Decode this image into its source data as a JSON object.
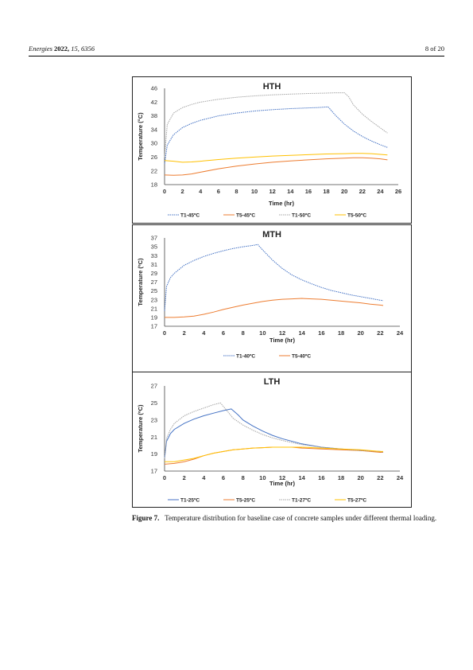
{
  "header": {
    "journal": "Energies",
    "year": "2022,",
    "volume_issue": "15, 6356",
    "page": "8 of 20"
  },
  "caption": {
    "label": "Figure 7.",
    "text": "Temperature distribution for baseline case of concrete samples under different thermal loading."
  },
  "chart_data": [
    {
      "type": "line",
      "title": "HTH",
      "xlabel": "Time (hr)",
      "ylabel": "Temperature (°C)",
      "xlim": [
        0,
        26
      ],
      "ylim": [
        18,
        46
      ],
      "xticks": [
        0,
        2,
        4,
        6,
        8,
        10,
        12,
        14,
        16,
        18,
        20,
        22,
        24,
        26
      ],
      "yticks": [
        18,
        22,
        26,
        30,
        34,
        38,
        42,
        46
      ],
      "grid": false,
      "legend": "bottom",
      "series": [
        {
          "name": "T1-45ºC",
          "color": "#4472c4",
          "dash": true,
          "x": [
            0,
            0.3,
            1,
            2,
            3,
            4,
            6,
            8,
            10,
            12,
            14,
            16,
            17,
            18.2,
            19,
            20,
            21,
            22,
            23,
            24,
            24.8
          ],
          "y": [
            24,
            29.5,
            32.5,
            34.6,
            35.8,
            36.7,
            38.0,
            38.8,
            39.4,
            39.8,
            40.1,
            40.3,
            40.4,
            40.6,
            38.2,
            35.6,
            33.6,
            32.0,
            30.7,
            29.6,
            28.8
          ]
        },
        {
          "name": "T5-45ºC",
          "color": "#ed7d31",
          "dash": false,
          "x": [
            0,
            1,
            2,
            3,
            4,
            6,
            8,
            10,
            12,
            14,
            16,
            18,
            20,
            21,
            22,
            23,
            24,
            24.8
          ],
          "y": [
            20.8,
            20.7,
            20.8,
            21.1,
            21.6,
            22.6,
            23.4,
            24.0,
            24.5,
            24.9,
            25.2,
            25.5,
            25.7,
            25.8,
            25.8,
            25.7,
            25.5,
            25.2
          ]
        },
        {
          "name": "T1-50ºC",
          "color": "#a5a5a5",
          "dash": true,
          "x": [
            0,
            0.3,
            1,
            2,
            3,
            4,
            6,
            8,
            10,
            12,
            14,
            16,
            18,
            19,
            20,
            20.5,
            21,
            22,
            23,
            24,
            24.8
          ],
          "y": [
            26,
            35.5,
            38.8,
            40.4,
            41.3,
            42.0,
            42.8,
            43.4,
            43.8,
            44.1,
            44.3,
            44.5,
            44.6,
            44.7,
            44.7,
            43.5,
            41.2,
            38.5,
            36.4,
            34.5,
            33.0
          ]
        },
        {
          "name": "T5-50ºC",
          "color": "#ffc000",
          "dash": false,
          "x": [
            0,
            1,
            2,
            3,
            4,
            6,
            8,
            10,
            12,
            14,
            16,
            18,
            20,
            21,
            22,
            23,
            24,
            24.8
          ],
          "y": [
            25.0,
            24.8,
            24.5,
            24.6,
            24.8,
            25.3,
            25.7,
            26.0,
            26.3,
            26.5,
            26.7,
            26.9,
            27.0,
            27.1,
            27.1,
            27.0,
            26.8,
            26.6
          ]
        }
      ]
    },
    {
      "type": "line",
      "title": "MTH",
      "xlabel": "Time (hr)",
      "ylabel": "Temperature (ºC)",
      "xlim": [
        0,
        24
      ],
      "ylim": [
        17,
        37
      ],
      "xticks": [
        0,
        2,
        4,
        6,
        8,
        10,
        12,
        14,
        16,
        18,
        20,
        22,
        24
      ],
      "yticks": [
        17,
        19,
        21,
        23,
        25,
        27,
        29,
        31,
        33,
        35,
        37
      ],
      "grid": false,
      "legend": "bottom",
      "series": [
        {
          "name": "T1-40ºC",
          "color": "#4472c4",
          "dash": true,
          "x": [
            0,
            0.2,
            0.6,
            1,
            2,
            3,
            4,
            5,
            6,
            7,
            8,
            9,
            9.5,
            10,
            11,
            12,
            13,
            14,
            15,
            16,
            17,
            18,
            19,
            20,
            21,
            22,
            22.3
          ],
          "y": [
            20.5,
            26.0,
            28.0,
            29.0,
            30.8,
            31.9,
            32.8,
            33.5,
            34.1,
            34.6,
            35.0,
            35.3,
            35.5,
            34.3,
            32.0,
            30.1,
            28.6,
            27.5,
            26.6,
            25.8,
            25.1,
            24.6,
            24.1,
            23.7,
            23.3,
            22.9,
            22.8
          ]
        },
        {
          "name": "T5-40ºC",
          "color": "#ed7d31",
          "dash": false,
          "x": [
            0,
            1,
            2,
            3,
            4,
            5,
            6,
            7,
            8,
            9,
            10,
            11,
            12,
            13,
            14,
            15,
            16,
            17,
            18,
            19,
            20,
            21,
            22,
            22.3
          ],
          "y": [
            19.0,
            19.0,
            19.1,
            19.3,
            19.7,
            20.2,
            20.8,
            21.3,
            21.8,
            22.2,
            22.6,
            22.9,
            23.1,
            23.2,
            23.3,
            23.2,
            23.1,
            22.9,
            22.7,
            22.5,
            22.3,
            22.0,
            21.8,
            21.7
          ]
        }
      ]
    },
    {
      "type": "line",
      "title": "LTH",
      "xlabel": "Time (hr)",
      "ylabel": "Temperature (ºC)",
      "xlim": [
        0,
        24
      ],
      "ylim": [
        17,
        27
      ],
      "xticks": [
        0,
        2,
        4,
        6,
        8,
        10,
        12,
        14,
        16,
        18,
        20,
        22,
        24
      ],
      "yticks": [
        17,
        19,
        21,
        23,
        25,
        27
      ],
      "grid": false,
      "legend": "bottom",
      "series": [
        {
          "name": "T1-25ºC",
          "color": "#4472c4",
          "dash": false,
          "x": [
            0,
            0.2,
            0.6,
            1,
            2,
            3,
            4,
            5,
            6,
            6.8,
            7.5,
            8,
            9,
            10,
            11,
            12,
            14,
            16,
            18,
            20,
            22,
            22.3
          ],
          "y": [
            18.5,
            20.5,
            21.4,
            21.9,
            22.6,
            23.1,
            23.5,
            23.8,
            24.1,
            24.3,
            23.6,
            23.0,
            22.3,
            21.7,
            21.2,
            20.8,
            20.2,
            19.8,
            19.6,
            19.4,
            19.3,
            19.2
          ]
        },
        {
          "name": "T5-25ºC",
          "color": "#ed7d31",
          "dash": false,
          "x": [
            0,
            1,
            2,
            3,
            4,
            5,
            6,
            7,
            8,
            9,
            10,
            11,
            12,
            13,
            14,
            16,
            18,
            20,
            22,
            22.3
          ],
          "y": [
            17.8,
            17.9,
            18.1,
            18.4,
            18.8,
            19.1,
            19.3,
            19.5,
            19.6,
            19.7,
            19.75,
            19.8,
            19.8,
            19.8,
            19.7,
            19.6,
            19.5,
            19.4,
            19.2,
            19.2
          ]
        },
        {
          "name": "T1-27ºC",
          "color": "#a5a5a5",
          "dash": true,
          "x": [
            0,
            0.2,
            0.6,
            1,
            2,
            3,
            4,
            5,
            5.7,
            6.5,
            7,
            8,
            9,
            10,
            11,
            12,
            14,
            16,
            18,
            20,
            22,
            22.3
          ],
          "y": [
            18.5,
            20.8,
            21.9,
            22.6,
            23.5,
            24.0,
            24.4,
            24.8,
            25.0,
            23.9,
            23.2,
            22.4,
            21.8,
            21.3,
            20.9,
            20.6,
            20.1,
            19.8,
            19.6,
            19.4,
            19.3,
            19.2
          ]
        },
        {
          "name": "T5-27ºC",
          "color": "#ffc000",
          "dash": false,
          "x": [
            0,
            1,
            2,
            3,
            4,
            5,
            6,
            7,
            8,
            9,
            10,
            11,
            12,
            13,
            14,
            16,
            18,
            20,
            22,
            22.3
          ],
          "y": [
            18.1,
            18.1,
            18.3,
            18.5,
            18.8,
            19.1,
            19.3,
            19.5,
            19.6,
            19.7,
            19.75,
            19.8,
            19.8,
            19.8,
            19.8,
            19.7,
            19.6,
            19.5,
            19.3,
            19.3
          ]
        }
      ]
    }
  ]
}
